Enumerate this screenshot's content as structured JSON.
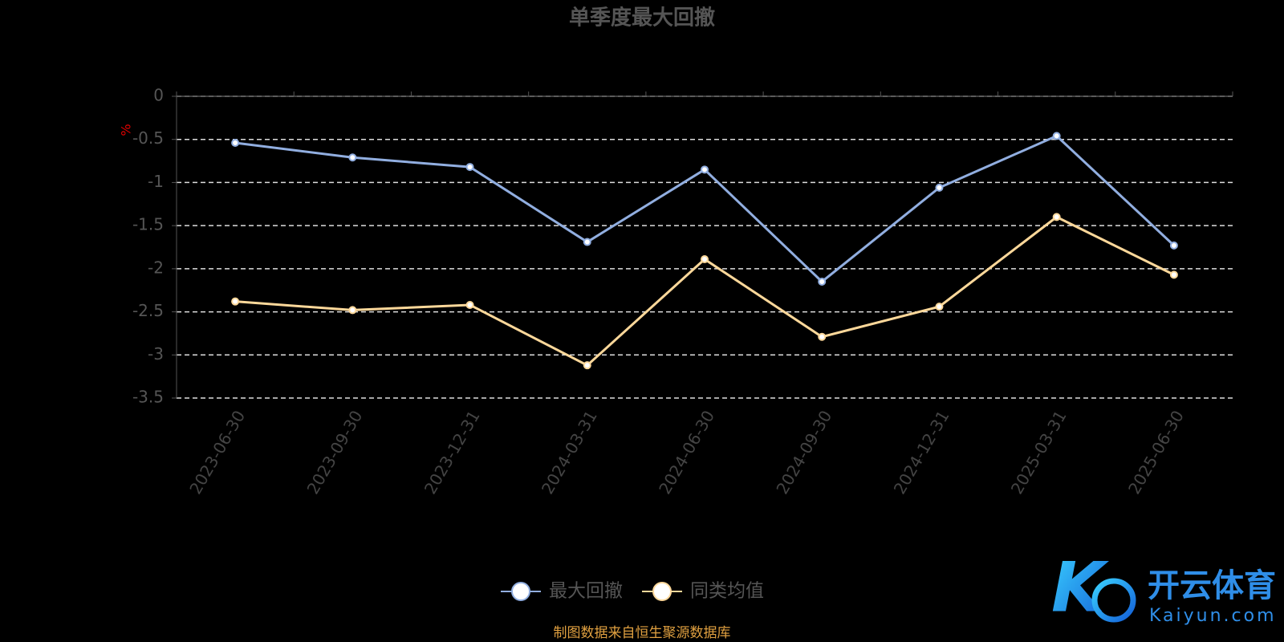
{
  "chart_data": {
    "type": "line",
    "title": "单季度最大回撤",
    "y_unit": "%",
    "categories": [
      "2023-06-30",
      "2023-09-30",
      "2023-12-31",
      "2024-03-31",
      "2024-06-30",
      "2024-09-30",
      "2024-12-31",
      "2025-03-31",
      "2025-06-30"
    ],
    "series": [
      {
        "name": "最大回撤",
        "color": "#91aee0",
        "values": [
          -0.54,
          -0.71,
          -0.82,
          -1.69,
          -0.85,
          -2.15,
          -1.06,
          -0.46,
          -1.73
        ]
      },
      {
        "name": "同类均值",
        "color": "#fdd89a",
        "values": [
          -2.38,
          -2.48,
          -2.42,
          -3.12,
          -1.89,
          -2.79,
          -2.44,
          -1.4,
          -2.07
        ]
      }
    ],
    "ylim": [
      -3.5,
      0
    ],
    "yticks": [
      0,
      -0.5,
      -1,
      -1.5,
      -2,
      -2.5,
      -3,
      -3.5
    ],
    "grid": true,
    "legend": "bottom",
    "source": "制图数据来自恒生聚源数据库"
  },
  "watermark": {
    "name": "开云体育",
    "url": "Kaiyun.com"
  }
}
